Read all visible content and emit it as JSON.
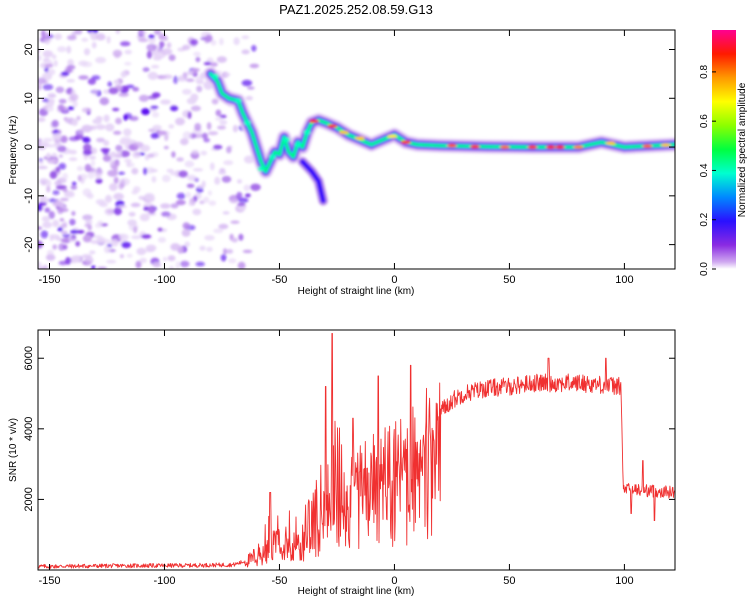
{
  "title": "PAZ1.2025.252.08.59.G13",
  "chart_data": [
    {
      "type": "heatmap",
      "name": "spectrogram",
      "xlabel": "Height of straight line (km)",
      "ylabel": "Frequency (Hz)",
      "xlim": [
        -155,
        122
      ],
      "ylim": [
        -25,
        24
      ],
      "xticks": [
        -150,
        -100,
        -50,
        0,
        50,
        100
      ],
      "yticks": [
        -20,
        -10,
        0,
        10,
        20
      ],
      "colorbar": {
        "label": "Normalized spectral amplitude",
        "range": [
          0,
          0.97
        ],
        "ticks": [
          "0.0",
          "0.2",
          "0.4",
          "0.6",
          "0.8"
        ],
        "colors": [
          "#a95ae8",
          "#5a10f0",
          "#1818ff",
          "#00c8ff",
          "#00ff60",
          "#9bff00",
          "#ffff00",
          "#ff9900",
          "#ff0000",
          "#ff0080"
        ]
      },
      "noise_region": {
        "x": [
          -155,
          -68
        ],
        "frequency_spread_hz": [
          -25,
          24
        ]
      },
      "ridge": [
        {
          "x": -80,
          "f": 15
        },
        {
          "x": -77,
          "f": 13.5
        },
        {
          "x": -75,
          "f": 11
        },
        {
          "x": -72,
          "f": 10
        },
        {
          "x": -68,
          "f": 9.5
        },
        {
          "x": -66,
          "f": 7
        },
        {
          "x": -64,
          "f": 5
        },
        {
          "x": -62,
          "f": 3
        },
        {
          "x": -60,
          "f": 0
        },
        {
          "x": -58,
          "f": -3
        },
        {
          "x": -56,
          "f": -5
        },
        {
          "x": -54,
          "f": -3
        },
        {
          "x": -52,
          "f": -1
        },
        {
          "x": -50,
          "f": -1.5
        },
        {
          "x": -48,
          "f": 2
        },
        {
          "x": -46,
          "f": -1
        },
        {
          "x": -44,
          "f": -2
        },
        {
          "x": -42,
          "f": 1
        },
        {
          "x": -40,
          "f": 0
        },
        {
          "x": -38,
          "f": 3
        },
        {
          "x": -36,
          "f": 5
        },
        {
          "x": -33,
          "f": 5.5
        },
        {
          "x": -30,
          "f": 5
        },
        {
          "x": -25,
          "f": 4
        },
        {
          "x": -20,
          "f": 2.5
        },
        {
          "x": -15,
          "f": 1.5
        },
        {
          "x": -10,
          "f": 0.5
        },
        {
          "x": -5,
          "f": 1.5
        },
        {
          "x": 0,
          "f": 2.5
        },
        {
          "x": 5,
          "f": 1
        },
        {
          "x": 10,
          "f": 0.5
        },
        {
          "x": 20,
          "f": 0.3
        },
        {
          "x": 40,
          "f": 0.1
        },
        {
          "x": 60,
          "f": 0
        },
        {
          "x": 80,
          "f": 0
        },
        {
          "x": 90,
          "f": 1
        },
        {
          "x": 100,
          "f": 0
        },
        {
          "x": 122,
          "f": 0.5
        }
      ],
      "lower_branch": [
        {
          "x": -40,
          "f": -3
        },
        {
          "x": -36,
          "f": -5
        },
        {
          "x": -33,
          "f": -7
        },
        {
          "x": -31,
          "f": -11
        }
      ]
    },
    {
      "type": "line",
      "name": "snr",
      "xlabel": "Height of straight line (km)",
      "ylabel": "SNR (10 * v/v)",
      "xlim": [
        -155,
        122
      ],
      "ylim": [
        0,
        6800
      ],
      "xticks": [
        -150,
        -100,
        -50,
        0,
        50,
        100
      ],
      "yticks": [
        2000,
        4000,
        6000
      ],
      "color": "#f03030",
      "envelope": [
        {
          "x": -155,
          "y": 100
        },
        {
          "x": -120,
          "y": 120
        },
        {
          "x": -90,
          "y": 130
        },
        {
          "x": -70,
          "y": 150
        },
        {
          "x": -62,
          "y": 300
        },
        {
          "x": -57,
          "y": 700
        },
        {
          "x": -52,
          "y": 1200
        },
        {
          "x": -45,
          "y": 1100
        },
        {
          "x": -40,
          "y": 1000
        },
        {
          "x": -35,
          "y": 1300
        },
        {
          "x": -30,
          "y": 2200
        },
        {
          "x": -27,
          "y": 2600
        },
        {
          "x": -22,
          "y": 2300
        },
        {
          "x": -15,
          "y": 2800
        },
        {
          "x": -10,
          "y": 3000
        },
        {
          "x": -5,
          "y": 3100
        },
        {
          "x": 0,
          "y": 3300
        },
        {
          "x": 5,
          "y": 3400
        },
        {
          "x": 10,
          "y": 3600
        },
        {
          "x": 15,
          "y": 4100
        },
        {
          "x": 20,
          "y": 4500
        },
        {
          "x": 25,
          "y": 4800
        },
        {
          "x": 30,
          "y": 5000
        },
        {
          "x": 40,
          "y": 5150
        },
        {
          "x": 50,
          "y": 5200
        },
        {
          "x": 60,
          "y": 5300
        },
        {
          "x": 70,
          "y": 5300
        },
        {
          "x": 80,
          "y": 5300
        },
        {
          "x": 90,
          "y": 5250
        },
        {
          "x": 98.5,
          "y": 5200
        },
        {
          "x": 99.5,
          "y": 2300
        },
        {
          "x": 110,
          "y": 2250
        },
        {
          "x": 122,
          "y": 2200
        }
      ],
      "peaks": [
        {
          "x": -54,
          "y": 2200
        },
        {
          "x": -30,
          "y": 5200
        },
        {
          "x": -27,
          "y": 6700
        },
        {
          "x": -18,
          "y": 4300
        },
        {
          "x": -7,
          "y": 5500
        },
        {
          "x": 7,
          "y": 5800
        },
        {
          "x": 67,
          "y": 6000
        },
        {
          "x": 92,
          "y": 6000
        },
        {
          "x": 108,
          "y": 3100
        },
        {
          "x": 103,
          "y": 1600
        },
        {
          "x": 113,
          "y": 1400
        }
      ]
    }
  ]
}
